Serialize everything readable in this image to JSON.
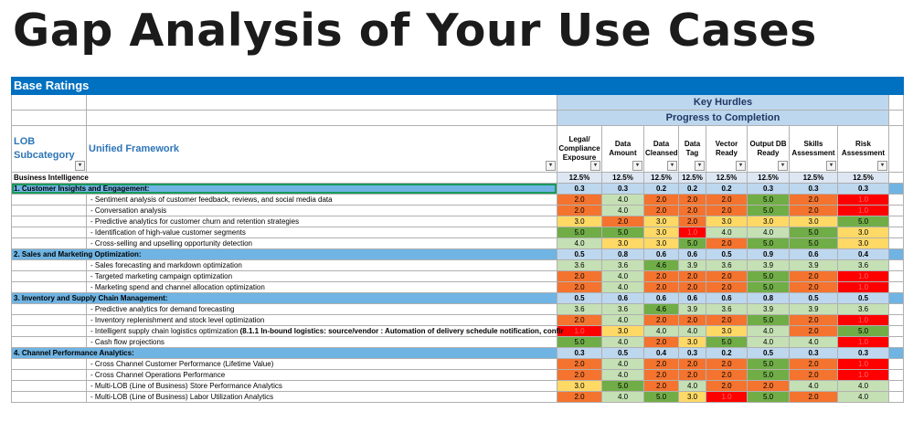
{
  "title": "Gap Analysis of Your Use Cases",
  "banner": "Base Ratings",
  "key_hurdles": "Key Hurdles",
  "progress": "Progress to Completion",
  "col_lob": "LOB Subcategory",
  "col_framework": "Unified Framework",
  "metric_headers": [
    "Legal/ Compliance Exposure",
    "Data Amount",
    "Data Cleansed",
    "Data Tag",
    "Vector Ready",
    "Output DB Ready",
    "Skills Assessment",
    "Risk Assessment"
  ],
  "bi_label": "Business Intelligence",
  "weights": [
    "12.5%",
    "12.5%",
    "12.5%",
    "12.5%",
    "12.5%",
    "12.5%",
    "12.5%",
    "12.5%"
  ],
  "colors": {
    "red": "#ff0000",
    "orange": "#f4732e",
    "yellow": "#ffd966",
    "light_green": "#c5e0b4",
    "green": "#70ad47",
    "section": "#6fb4e3",
    "banner": "#0070c0"
  },
  "rows": [
    {
      "type": "section",
      "label": "1. Customer Insights and Engagement:",
      "values": [
        "0.3",
        "0.3",
        "0.2",
        "0.2",
        "0.2",
        "0.3",
        "0.3",
        "0.3"
      ]
    },
    {
      "type": "item",
      "label": "- Sentiment analysis of customer feedback, reviews, and social media data",
      "values": [
        "2.0",
        "4.0",
        "2.0",
        "2.0",
        "2.0",
        "5.0",
        "2.0",
        "1.0"
      ],
      "colors": [
        "o",
        "lg",
        "o",
        "o",
        "o",
        "g",
        "o",
        "r"
      ]
    },
    {
      "type": "item",
      "label": "- Conversation analysis",
      "values": [
        "2.0",
        "4.0",
        "2.0",
        "2.0",
        "2.0",
        "5.0",
        "2.0",
        "1.0"
      ],
      "colors": [
        "o",
        "lg",
        "o",
        "o",
        "o",
        "g",
        "o",
        "r"
      ]
    },
    {
      "type": "item",
      "label": "- Predictive analytics for customer churn and retention strategies",
      "values": [
        "3.0",
        "2.0",
        "3.0",
        "2.0",
        "3.0",
        "3.0",
        "3.0",
        "5.0"
      ],
      "colors": [
        "y",
        "o",
        "y",
        "o",
        "y",
        "y",
        "y",
        "g"
      ]
    },
    {
      "type": "item",
      "label": "- Identification of high-value customer segments",
      "values": [
        "5.0",
        "5.0",
        "3.0",
        "1.0",
        "4.0",
        "4.0",
        "5.0",
        "3.0"
      ],
      "colors": [
        "g",
        "g",
        "y",
        "r",
        "lg",
        "lg",
        "g",
        "y"
      ]
    },
    {
      "type": "item",
      "label": "- Cross-selling and upselling opportunity detection",
      "values": [
        "4.0",
        "3.0",
        "3.0",
        "5.0",
        "2.0",
        "5.0",
        "5.0",
        "3.0"
      ],
      "colors": [
        "lg",
        "y",
        "y",
        "g",
        "o",
        "g",
        "g",
        "y"
      ]
    },
    {
      "type": "section",
      "label": "2. Sales and Marketing Optimization:",
      "values": [
        "0.5",
        "0.8",
        "0.6",
        "0.6",
        "0.5",
        "0.9",
        "0.6",
        "0.4"
      ]
    },
    {
      "type": "item",
      "label": "- Sales forecasting and markdown optimization",
      "values": [
        "3.6",
        "3.6",
        "4.6",
        "3.9",
        "3.6",
        "3.9",
        "3.9",
        "3.6"
      ],
      "colors": [
        "lg",
        "lg",
        "g",
        "lg",
        "lg",
        "lg",
        "lg",
        "lg"
      ]
    },
    {
      "type": "item",
      "label": "- Targeted marketing campaign optimization",
      "values": [
        "2.0",
        "4.0",
        "2.0",
        "2.0",
        "2.0",
        "5.0",
        "2.0",
        "1.0"
      ],
      "colors": [
        "o",
        "lg",
        "o",
        "o",
        "o",
        "g",
        "o",
        "r"
      ]
    },
    {
      "type": "item",
      "label": "- Marketing spend and channel allocation optimization",
      "values": [
        "2.0",
        "4.0",
        "2.0",
        "2.0",
        "2.0",
        "5.0",
        "2.0",
        "1.0"
      ],
      "colors": [
        "o",
        "lg",
        "o",
        "o",
        "o",
        "g",
        "o",
        "r"
      ]
    },
    {
      "type": "section",
      "label": "3. Inventory and Supply Chain Management:",
      "values": [
        "0.5",
        "0.6",
        "0.6",
        "0.6",
        "0.6",
        "0.8",
        "0.5",
        "0.5"
      ]
    },
    {
      "type": "item",
      "label": "- Predictive analytics for demand forecasting",
      "values": [
        "3.6",
        "3.6",
        "4.6",
        "3.9",
        "3.6",
        "3.9",
        "3.9",
        "3.6"
      ],
      "colors": [
        "lg",
        "lg",
        "g",
        "lg",
        "lg",
        "lg",
        "lg",
        "lg"
      ]
    },
    {
      "type": "item",
      "label": "- Inventory replenishment and stock level optimization",
      "values": [
        "2.0",
        "4.0",
        "2.0",
        "2.0",
        "2.0",
        "5.0",
        "2.0",
        "1.0"
      ],
      "colors": [
        "o",
        "lg",
        "o",
        "o",
        "o",
        "g",
        "o",
        "r"
      ]
    },
    {
      "type": "item",
      "label": "- Intelligent supply chain logistics optimization",
      "label_bold": " (8.1.1 In-bound logistics: source/vendor : Automation of delivery schedule notification, confir",
      "values": [
        "1.0",
        "3.0",
        "4.0",
        "4.0",
        "3.0",
        "4.0",
        "2.0",
        "5.0"
      ],
      "colors": [
        "r",
        "y",
        "lg",
        "lg",
        "y",
        "lg",
        "o",
        "g"
      ]
    },
    {
      "type": "item",
      "label": "- Cash flow projections",
      "values": [
        "5.0",
        "4.0",
        "2.0",
        "3.0",
        "5.0",
        "4.0",
        "4.0",
        "1.0"
      ],
      "colors": [
        "g",
        "lg",
        "o",
        "y",
        "g",
        "lg",
        "lg",
        "r"
      ]
    },
    {
      "type": "section",
      "label": "4. Channel Performance Analytics:",
      "values": [
        "0.3",
        "0.5",
        "0.4",
        "0.3",
        "0.2",
        "0.5",
        "0.3",
        "0.3"
      ]
    },
    {
      "type": "item",
      "label": "- Cross Channel Customer Performance (Lifetime Value)",
      "values": [
        "2.0",
        "4.0",
        "2.0",
        "2.0",
        "2.0",
        "5.0",
        "2.0",
        "1.0"
      ],
      "colors": [
        "o",
        "lg",
        "o",
        "o",
        "o",
        "g",
        "o",
        "r"
      ]
    },
    {
      "type": "item",
      "label": "- Cross Channel Operations Performance",
      "values": [
        "2.0",
        "4.0",
        "2.0",
        "2.0",
        "2.0",
        "5.0",
        "2.0",
        "1.0"
      ],
      "colors": [
        "o",
        "lg",
        "o",
        "o",
        "o",
        "g",
        "o",
        "r"
      ]
    },
    {
      "type": "item",
      "label": "- Multi-LOB (Line of Business) Store Performance Analytics",
      "values": [
        "3.0",
        "5.0",
        "2.0",
        "4.0",
        "2.0",
        "2.0",
        "4.0",
        "4.0"
      ],
      "colors": [
        "y",
        "g",
        "o",
        "lg",
        "o",
        "o",
        "lg",
        "lg"
      ]
    },
    {
      "type": "item",
      "label": "- Multi-LOB (Line of Business) Labor Utilization Analytics",
      "values": [
        "2.0",
        "4.0",
        "5.0",
        "3.0",
        "1.0",
        "5.0",
        "2.0",
        "4.0"
      ],
      "colors": [
        "o",
        "lg",
        "g",
        "y",
        "r",
        "g",
        "o",
        "lg"
      ]
    }
  ]
}
